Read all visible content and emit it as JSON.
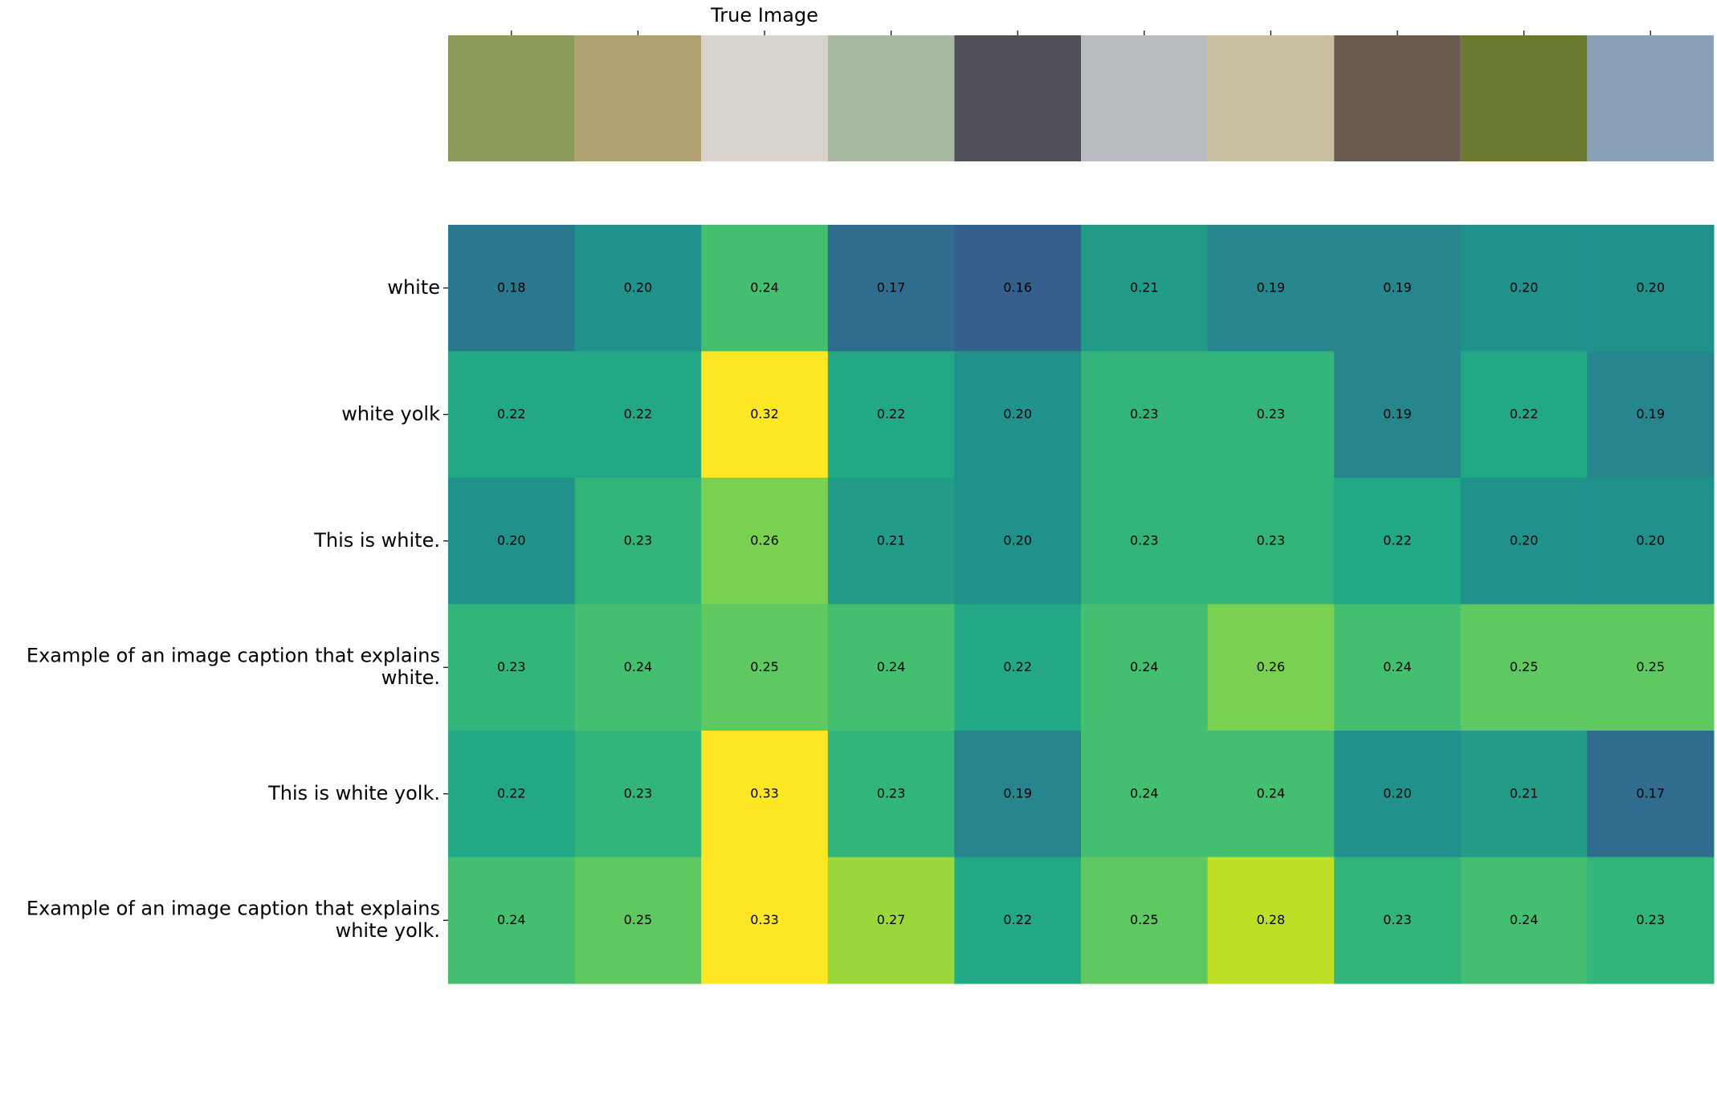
{
  "chart_data": {
    "type": "heatmap",
    "x_categories": [
      null,
      null,
      "True Image",
      null,
      null,
      null,
      null,
      null,
      null,
      null
    ],
    "y_categories": [
      "white",
      "white yolk",
      "This is white.",
      "Example of an image caption that explains\nwhite.",
      "This is white yolk.",
      "Example of an image caption that explains\nwhite yolk."
    ],
    "values": [
      [
        0.18,
        0.2,
        0.24,
        0.17,
        0.16,
        0.21,
        0.19,
        0.19,
        0.2,
        0.2
      ],
      [
        0.22,
        0.22,
        0.32,
        0.22,
        0.2,
        0.23,
        0.23,
        0.19,
        0.22,
        0.19
      ],
      [
        0.2,
        0.23,
        0.26,
        0.21,
        0.2,
        0.23,
        0.23,
        0.22,
        0.2,
        0.2
      ],
      [
        0.23,
        0.24,
        0.25,
        0.24,
        0.22,
        0.24,
        0.26,
        0.24,
        0.25,
        0.25
      ],
      [
        0.22,
        0.23,
        0.33,
        0.23,
        0.19,
        0.24,
        0.24,
        0.2,
        0.21,
        0.17
      ],
      [
        0.24,
        0.25,
        0.33,
        0.27,
        0.22,
        0.25,
        0.28,
        0.23,
        0.24,
        0.23
      ]
    ],
    "value_labels": [
      [
        "0.18",
        "0.20",
        "0.24",
        "0.17",
        "0.16",
        "0.21",
        "0.19",
        "0.19",
        "0.20",
        "0.20"
      ],
      [
        "0.22",
        "0.22",
        "0.32",
        "0.22",
        "0.20",
        "0.23",
        "0.23",
        "0.19",
        "0.22",
        "0.19"
      ],
      [
        "0.20",
        "0.23",
        "0.26",
        "0.21",
        "0.20",
        "0.23",
        "0.23",
        "0.22",
        "0.20",
        "0.20"
      ],
      [
        "0.23",
        "0.24",
        "0.25",
        "0.24",
        "0.22",
        "0.24",
        "0.26",
        "0.24",
        "0.25",
        "0.25"
      ],
      [
        "0.22",
        "0.23",
        "0.33",
        "0.23",
        "0.19",
        "0.24",
        "0.24",
        "0.20",
        "0.21",
        "0.17"
      ],
      [
        "0.24",
        "0.25",
        "0.33",
        "0.27",
        "0.22",
        "0.25",
        "0.28",
        "0.23",
        "0.24",
        "0.23"
      ]
    ],
    "colormap": "viridis",
    "clim": [
      0.1,
      0.3
    ]
  }
}
